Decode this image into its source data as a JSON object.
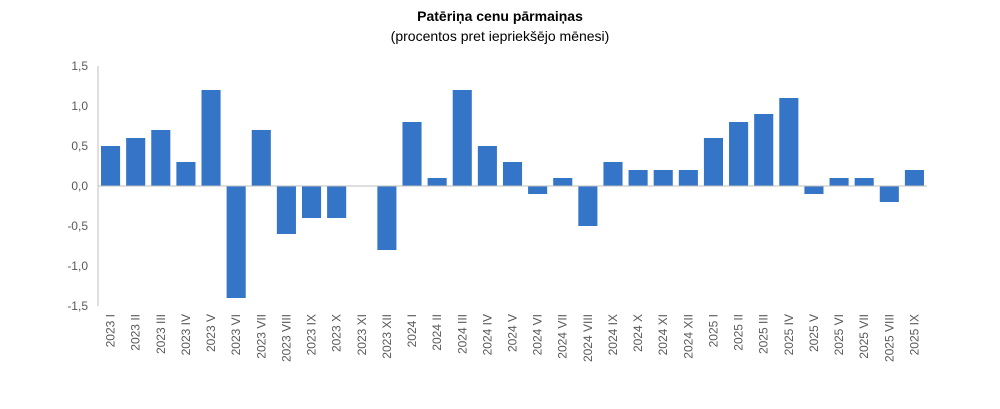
{
  "chart_data": {
    "type": "bar",
    "title": "Patēriņa cenu pārmaiņas",
    "subtitle": "(procentos pret iepriekšējo mēnesi)",
    "xlabel": "",
    "ylabel": "",
    "ylim": [
      -1.5,
      1.5
    ],
    "yticks": [
      "1,5",
      "1,0",
      "0,5",
      "0,0",
      "-0,5",
      "-1,0",
      "-1,5"
    ],
    "ytick_values": [
      1.5,
      1.0,
      0.5,
      0.0,
      -0.5,
      -1.0,
      -1.5
    ],
    "grid": false,
    "bar_color": "#3575C7",
    "categories": [
      "2023 I",
      "2023 II",
      "2023 III",
      "2023 IV",
      "2023 V",
      "2023 VI",
      "2023 VII",
      "2023 VIII",
      "2023 IX",
      "2023 X",
      "2023 XI",
      "2023 XII",
      "2024 I",
      "2024 II",
      "2024 III",
      "2024 IV",
      "2024 V",
      "2024 VI",
      "2024 VII",
      "2024 VIII",
      "2024 IX",
      "2024 X",
      "2024 XI",
      "2024 XII",
      "2025 I",
      "2025 II",
      "2025 III",
      "2025 IV",
      "2025 V",
      "2025 VI",
      "2025 VII",
      "2025 VIII",
      "2025 IX"
    ],
    "values": [
      0.5,
      0.6,
      0.7,
      0.3,
      1.2,
      -1.4,
      0.7,
      -0.6,
      -0.4,
      -0.4,
      0.0,
      -0.8,
      0.8,
      0.1,
      1.2,
      0.5,
      0.3,
      -0.1,
      0.1,
      -0.5,
      0.3,
      0.2,
      0.2,
      0.2,
      0.6,
      0.8,
      0.9,
      1.1,
      -0.1,
      0.1,
      0.1,
      -0.2,
      0.2
    ]
  }
}
